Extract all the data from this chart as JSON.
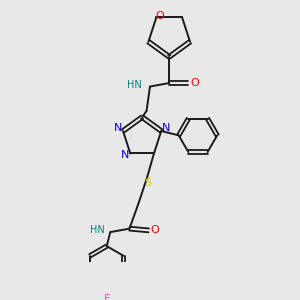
{
  "background_color": "#e8e8e8",
  "bond_color": "#1a1a1a",
  "nitrogen_color": "#0000ff",
  "oxygen_color": "#ff0000",
  "sulfur_color": "#cccc00",
  "fluorine_color": "#ff44aa",
  "hn_color": "#008080",
  "figsize": [
    3.0,
    3.0
  ],
  "dpi": 100,
  "xlim": [
    0,
    3.0
  ],
  "ylim": [
    0,
    3.0
  ]
}
